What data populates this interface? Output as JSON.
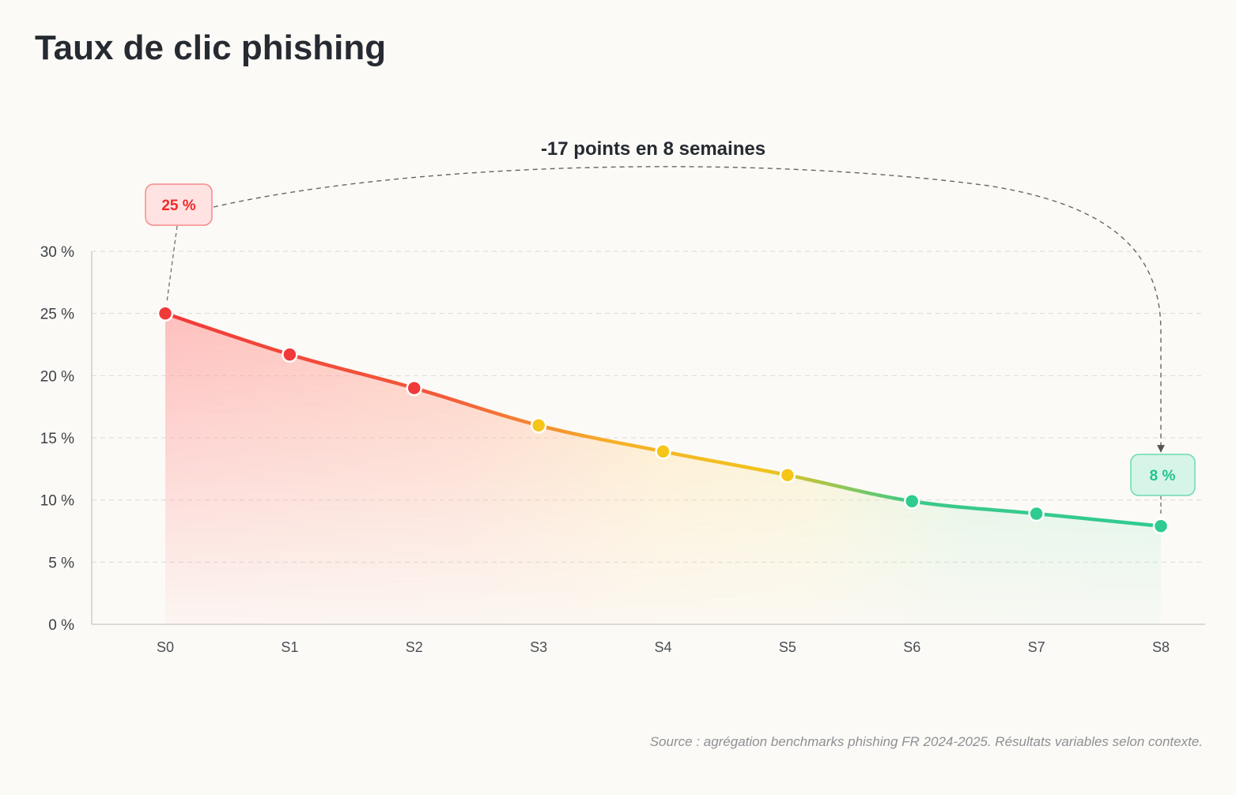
{
  "page": {
    "title": "Taux de clic phishing"
  },
  "annotation": {
    "headline": "-17 points en 8 semaines"
  },
  "source": "Source : agrégation benchmarks phishing FR 2024-2025. Résultats variables selon contexte.",
  "callouts": {
    "start": {
      "label": "25 %",
      "color": "#ef2b2b"
    },
    "end": {
      "label": "8 %",
      "color": "#22c38e"
    }
  },
  "chart_data": {
    "type": "line",
    "categories": [
      "S0",
      "S1",
      "S2",
      "S3",
      "S4",
      "S5",
      "S6",
      "S7",
      "S8"
    ],
    "series": [
      {
        "values": [
          25,
          21.7,
          19,
          16,
          13.9,
          12,
          9.9,
          8.9,
          7.9
        ]
      }
    ],
    "ylim": [
      0,
      30
    ],
    "yticks": [
      0,
      5,
      10,
      15,
      20,
      25,
      30
    ],
    "ytick_suffix": " %",
    "grid": true,
    "legend": "none",
    "colors": {
      "high": "#f03a3a",
      "mid": "#f5c518",
      "low": "#2fcb8f"
    }
  }
}
